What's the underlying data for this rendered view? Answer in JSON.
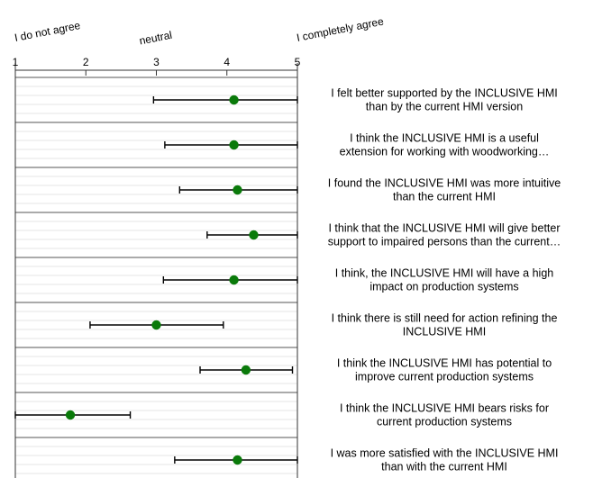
{
  "chart_data": {
    "type": "scatter",
    "orientation": "horizontal",
    "x_range": [
      1,
      5
    ],
    "ticks": [
      "1",
      "2",
      "3",
      "4",
      "5"
    ],
    "scale_anchors": [
      {
        "value": 1,
        "label": "I do not agree"
      },
      {
        "value": 3,
        "label": "neutral"
      },
      {
        "value": 5,
        "label": "I completely agree"
      }
    ],
    "grid": true,
    "colors": {
      "marker": "#0a7a0a",
      "error_bar": "#000000",
      "grid": "#e6e6e6",
      "divider": "#555555"
    },
    "items": [
      {
        "label_lines": [
          "I felt better supported by the INCLUSIVE HMI",
          "than by the current HMI version"
        ],
        "mean": 4.1,
        "low": 2.96,
        "high": 5.0
      },
      {
        "label_lines": [
          "I think the INCLUSIVE HMI is a useful",
          "extension for working with woodworking…"
        ],
        "mean": 4.1,
        "low": 3.12,
        "high": 5.0
      },
      {
        "label_lines": [
          "I found the INCLUSIVE HMI was more intuitive",
          "than the current HMI"
        ],
        "mean": 4.15,
        "low": 3.33,
        "high": 5.0
      },
      {
        "label_lines": [
          "I think that the INCLUSIVE HMI will give better",
          "support to impaired persons than the current…"
        ],
        "mean": 4.38,
        "low": 3.72,
        "high": 5.0
      },
      {
        "label_lines": [
          "I think, the INCLUSIVE HMI will have a high",
          "impact on production systems"
        ],
        "mean": 4.1,
        "low": 3.1,
        "high": 5.0
      },
      {
        "label_lines": [
          "I think there is still need for action refining the",
          "INCLUSIVE HMI"
        ],
        "mean": 3.0,
        "low": 2.06,
        "high": 3.95
      },
      {
        "label_lines": [
          "I think the INCLUSIVE HMI has potential to",
          "improve current production systems"
        ],
        "mean": 4.27,
        "low": 3.62,
        "high": 4.93
      },
      {
        "label_lines": [
          "I think the INCLUSIVE HMI bears risks for",
          "current production systems"
        ],
        "mean": 1.78,
        "low": 1.0,
        "high": 2.63
      },
      {
        "label_lines": [
          "I was more satisfied with the INCLUSIVE HMI",
          "than with the current HMI"
        ],
        "mean": 4.15,
        "low": 3.26,
        "high": 5.0
      }
    ]
  }
}
